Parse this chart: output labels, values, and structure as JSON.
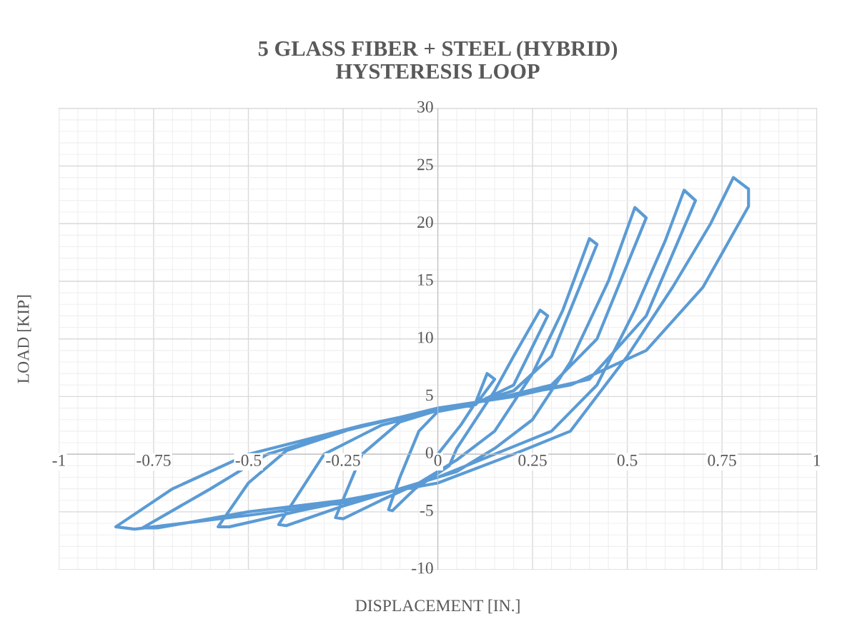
{
  "chart_data": {
    "type": "line",
    "title": "5 GLASS FIBER + STEEL (HYBRID)\nHYSTERESIS LOOP",
    "xlabel": "DISPLACEMENT [IN.]",
    "ylabel": "LOAD [KIP]",
    "series": [
      {
        "color": "#5b9bd5",
        "x": [
          0,
          0.06,
          0.1,
          0.13,
          0.15,
          0.1,
          0.05,
          0,
          -0.05,
          -0.1,
          -0.13,
          -0.12,
          -0.06,
          0.03,
          0.05,
          0.1,
          0.15,
          0.2,
          0.27,
          0.29,
          0.2,
          0.1,
          0,
          -0.1,
          -0.2,
          -0.27,
          -0.25,
          -0.15,
          -0.05,
          0.05,
          0.15,
          0.25,
          0.33,
          0.4,
          0.42,
          0.3,
          0.2,
          0.1,
          0,
          -0.15,
          -0.3,
          -0.42,
          -0.4,
          -0.25,
          -0.1,
          0.05,
          0.15,
          0.25,
          0.35,
          0.45,
          0.52,
          0.55,
          0.42,
          0.3,
          0.15,
          0,
          -0.2,
          -0.4,
          -0.5,
          -0.58,
          -0.55,
          -0.35,
          -0.15,
          0,
          0.15,
          0.3,
          0.42,
          0.52,
          0.6,
          0.65,
          0.68,
          0.55,
          0.4,
          0.2,
          0,
          -0.25,
          -0.45,
          -0.6,
          -0.78,
          -0.74,
          -0.5,
          -0.25,
          0,
          0.2,
          0.35,
          0.5,
          0.62,
          0.72,
          0.78,
          0.82,
          0.82,
          0.7,
          0.55,
          0.35,
          0.1,
          -0.2,
          -0.5,
          -0.7,
          -0.85,
          -0.8,
          -0.5,
          -0.2
        ],
        "values": [
          0,
          2.5,
          4.5,
          7,
          6.5,
          4.3,
          4,
          3.7,
          2,
          -2,
          -4.8,
          -4.9,
          -3,
          -1,
          0.5,
          3,
          5.5,
          8.5,
          12.5,
          12,
          6,
          4.4,
          3.8,
          2.8,
          0,
          -5.5,
          -5.6,
          -4,
          -2.5,
          -0.5,
          2,
          7,
          12.5,
          18.7,
          18.2,
          8.5,
          5.5,
          4.5,
          3.8,
          2.5,
          0,
          -6.1,
          -6.2,
          -4.5,
          -3,
          -1.5,
          0.5,
          3,
          8,
          15,
          21.4,
          20.5,
          10,
          6,
          4.8,
          3.9,
          2.5,
          0.3,
          -2.5,
          -6.3,
          -6.3,
          -4.8,
          -3.5,
          -2,
          0,
          2,
          6,
          12.5,
          18.5,
          22.9,
          22,
          12,
          6.5,
          5,
          4,
          2,
          0,
          -3,
          -6.4,
          -6.4,
          -5,
          -4,
          -2.5,
          0,
          2,
          8.5,
          14.5,
          20,
          24,
          23,
          21.5,
          14.5,
          9,
          6,
          4.5,
          2.5,
          0,
          -3,
          -6.3,
          -6.5,
          -5.3,
          -4
        ]
      }
    ],
    "xlim": [
      -1,
      1
    ],
    "xticks": [
      -1,
      -0.75,
      -0.5,
      -0.25,
      0,
      0.25,
      0.5,
      0.75,
      1
    ],
    "ylim": [
      -10,
      30
    ],
    "yticks": [
      -10,
      -5,
      0,
      5,
      10,
      15,
      20,
      25,
      30
    ],
    "grid": true,
    "marker": "none",
    "line_style": "solid"
  }
}
